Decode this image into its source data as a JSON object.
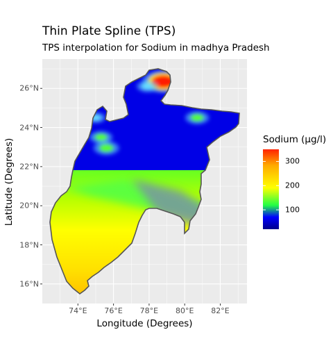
{
  "title": "Thin Plate Spline (TPS)",
  "subtitle": "TPS interpolation for Sodium in madhya Pradesh",
  "chart_data": {
    "type": "heatmap",
    "xlabel": "Longitude (Degrees)",
    "ylabel": "Latitude (Degrees)",
    "xlim": [
      72.0,
      83.5
    ],
    "ylim": [
      15.0,
      27.5
    ],
    "x_ticks": [
      "74°E",
      "76°E",
      "78°E",
      "80°E",
      "82°E"
    ],
    "x_tick_values": [
      74,
      76,
      78,
      80,
      82
    ],
    "y_ticks": [
      "16°N",
      "18°N",
      "20°N",
      "22°N",
      "24°N",
      "26°N"
    ],
    "y_tick_values": [
      16,
      18,
      20,
      22,
      24,
      26
    ],
    "grid": true,
    "legend": {
      "title": "Sodium (µg/l)",
      "labels": [
        "100",
        "200",
        "300"
      ],
      "values": [
        100,
        200,
        300
      ],
      "range": [
        20,
        350
      ],
      "colors": [
        "#0000cc",
        "#0000ff",
        "#33ff33",
        "#ffff00",
        "#ffaa00",
        "#ff0000"
      ],
      "placement": "right"
    },
    "hotspots": [
      {
        "lon": 78.8,
        "lat": 26.35,
        "value": 350
      },
      {
        "lon": 75.6,
        "lat": 22.95,
        "value": 180
      },
      {
        "lon": 75.3,
        "lat": 23.5,
        "value": 150
      },
      {
        "lon": 80.7,
        "lat": 24.5,
        "value": 160
      },
      {
        "lon": 77.9,
        "lat": 26.1,
        "value": 130
      },
      {
        "lon": 75.0,
        "lat": 24.5,
        "value": 110
      }
    ],
    "background_value": 30,
    "south_gradient": [
      {
        "lat": 21.0,
        "value": 180
      },
      {
        "lat": 18.0,
        "value": 240
      },
      {
        "lat": 16.0,
        "value": 290
      }
    ]
  },
  "colors": {
    "panel_bg": "#ebebeb",
    "grid": "#ffffff",
    "border": "#555555"
  }
}
